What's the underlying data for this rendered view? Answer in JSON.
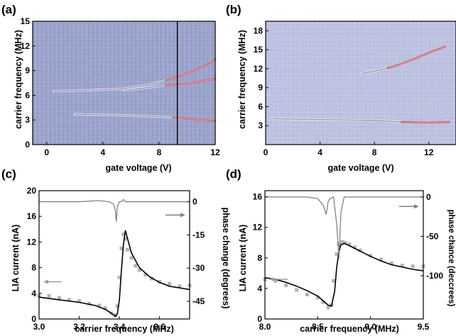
{
  "panels": [
    {
      "label": "(a)"
    },
    {
      "label": "(b)"
    },
    {
      "label": "(c)"
    },
    {
      "label": "(d)"
    }
  ],
  "chart_data": [
    {
      "panel": "(a)",
      "type": "heatmap",
      "xlabel": "gate voltage (V)",
      "ylabel": "carrier frequency (MHz)",
      "xlim": [
        -1,
        12
      ],
      "ylim": [
        0,
        15
      ],
      "xticks": [
        0,
        4,
        8,
        12
      ],
      "yticks": [
        0,
        3,
        6,
        9,
        12,
        15
      ],
      "marker_line_x": 9.3,
      "traces": [
        {
          "x": [
            2,
            5,
            8,
            9,
            10,
            11,
            12
          ],
          "y": [
            3.7,
            3.6,
            3.4,
            3.3,
            3.2,
            3.0,
            2.9
          ]
        },
        {
          "x": [
            0.5,
            3,
            5.5,
            7,
            8.5,
            9.5,
            10.5,
            11.5,
            12
          ],
          "y": [
            6.5,
            6.6,
            6.8,
            7.2,
            7.8,
            8.4,
            9.0,
            9.8,
            10.4
          ]
        },
        {
          "x": [
            5.5,
            7,
            8.5,
            10,
            11,
            12
          ],
          "y": [
            6.6,
            6.9,
            7.2,
            7.4,
            7.7,
            8.0
          ]
        }
      ]
    },
    {
      "panel": "(b)",
      "type": "heatmap",
      "xlabel": "gate voltage (V)",
      "ylabel": "carrier frequency (MHz)",
      "xlim": [
        0,
        14
      ],
      "ylim": [
        0,
        19.5
      ],
      "xticks": [
        0,
        4,
        8,
        12
      ],
      "yticks": [
        3,
        6,
        9,
        12,
        15,
        18
      ],
      "traces": [
        {
          "x": [
            0.5,
            3,
            6,
            8,
            10,
            12,
            13.5
          ],
          "y": [
            4.1,
            4.0,
            3.9,
            3.8,
            3.6,
            3.5,
            3.6
          ]
        },
        {
          "x": [
            7,
            8,
            9,
            10,
            11,
            12,
            13.2
          ],
          "y": [
            11.2,
            11.6,
            12.1,
            12.8,
            13.6,
            14.5,
            15.5
          ]
        }
      ]
    },
    {
      "panel": "(c)",
      "type": "line",
      "xlabel": "carrier frequency (MHz)",
      "ylabel": "LIA current (nA)",
      "y2label": "phase change (degrees)",
      "xlim": [
        3.0,
        3.75
      ],
      "ylim": [
        0,
        20
      ],
      "y2lim": [
        -53,
        5
      ],
      "xticks": [
        3.0,
        3.2,
        3.4,
        3.6
      ],
      "yticks": [
        0,
        4,
        8,
        12,
        16,
        20
      ],
      "y2ticks": [
        0,
        -15,
        -30,
        -45
      ],
      "series": [
        {
          "role": "data",
          "x": [
            3.0,
            3.05,
            3.1,
            3.15,
            3.2,
            3.25,
            3.3,
            3.33,
            3.36,
            3.38,
            3.39,
            3.4,
            3.41,
            3.42,
            3.43,
            3.44,
            3.46,
            3.48,
            3.5,
            3.53,
            3.56,
            3.6,
            3.65,
            3.7,
            3.75
          ],
          "y": [
            3.6,
            3.6,
            3.3,
            3.0,
            2.8,
            2.4,
            2.1,
            1.7,
            0.9,
            0.6,
            2.0,
            6.5,
            11.0,
            13.2,
            12.5,
            10.8,
            9.5,
            8.3,
            7.6,
            6.9,
            6.3,
            5.8,
            5.5,
            5.1,
            5.2
          ]
        },
        {
          "role": "fit",
          "x": [
            3.0,
            3.1,
            3.2,
            3.28,
            3.33,
            3.36,
            3.38,
            3.39,
            3.4,
            3.41,
            3.42,
            3.43,
            3.44,
            3.46,
            3.5,
            3.55,
            3.6,
            3.65,
            3.75
          ],
          "y": [
            3.4,
            3.0,
            2.6,
            2.1,
            1.5,
            0.9,
            0.4,
            0.8,
            3.0,
            7.5,
            11.5,
            13.8,
            12.6,
            10.3,
            8.0,
            6.6,
            5.7,
            5.1,
            4.6
          ]
        },
        {
          "role": "phase",
          "x": [
            3.0,
            3.1,
            3.2,
            3.3,
            3.35,
            3.37,
            3.38,
            3.385,
            3.39,
            3.4,
            3.41,
            3.42,
            3.43,
            3.45,
            3.5,
            3.6,
            3.75
          ],
          "y": [
            0,
            0,
            0,
            0.5,
            0,
            -1,
            -4,
            -9,
            -2,
            0,
            0,
            1,
            0,
            0,
            0,
            0,
            0
          ]
        }
      ]
    },
    {
      "panel": "(d)",
      "type": "line",
      "xlabel": "carrier frequency (MHz)",
      "ylabel": "LIA current (nA)",
      "y2label": "phase chance (deccrees)",
      "xlim": [
        8.0,
        9.5
      ],
      "ylim": [
        0,
        16.8
      ],
      "y2lim": [
        -155,
        8
      ],
      "xticks": [
        8.0,
        8.5,
        9.0,
        9.5
      ],
      "yticks": [
        0,
        4,
        8,
        12,
        16
      ],
      "y2ticks": [
        0,
        -50,
        -100
      ],
      "series": [
        {
          "role": "data",
          "x": [
            8.0,
            8.1,
            8.2,
            8.3,
            8.4,
            8.5,
            8.55,
            8.6,
            8.63,
            8.65,
            8.68,
            8.7,
            8.73,
            8.76,
            8.8,
            8.85,
            8.9,
            9.0,
            9.1,
            9.2,
            9.3,
            9.4,
            9.5
          ],
          "y": [
            5.2,
            5.0,
            4.4,
            3.8,
            3.2,
            2.8,
            2.2,
            1.5,
            1.8,
            5.0,
            8.5,
            9.8,
            10.1,
            10.0,
            9.8,
            9.4,
            9.0,
            8.3,
            7.8,
            7.3,
            7.0,
            6.9,
            6.9
          ]
        },
        {
          "role": "fit",
          "x": [
            8.0,
            8.1,
            8.2,
            8.3,
            8.4,
            8.5,
            8.55,
            8.6,
            8.63,
            8.66,
            8.68,
            8.7,
            8.72,
            8.75,
            8.8,
            8.9,
            9.0,
            9.1,
            9.2,
            9.3,
            9.4,
            9.5
          ],
          "y": [
            5.4,
            5.2,
            4.8,
            4.3,
            3.7,
            3.0,
            2.4,
            1.8,
            1.7,
            3.6,
            6.8,
            8.8,
            9.7,
            9.9,
            9.6,
            8.9,
            8.2,
            7.6,
            7.1,
            6.8,
            6.5,
            6.3
          ]
        },
        {
          "role": "phase",
          "x": [
            8.0,
            8.2,
            8.4,
            8.5,
            8.55,
            8.58,
            8.6,
            8.62,
            8.65,
            8.68,
            8.7,
            8.72,
            8.75,
            8.8,
            9.0,
            9.2,
            9.5
          ],
          "y": [
            0,
            0,
            0,
            -2,
            -10,
            -22,
            -5,
            -2,
            0,
            -35,
            -78,
            -20,
            0,
            0,
            0,
            0,
            0
          ]
        }
      ]
    }
  ]
}
